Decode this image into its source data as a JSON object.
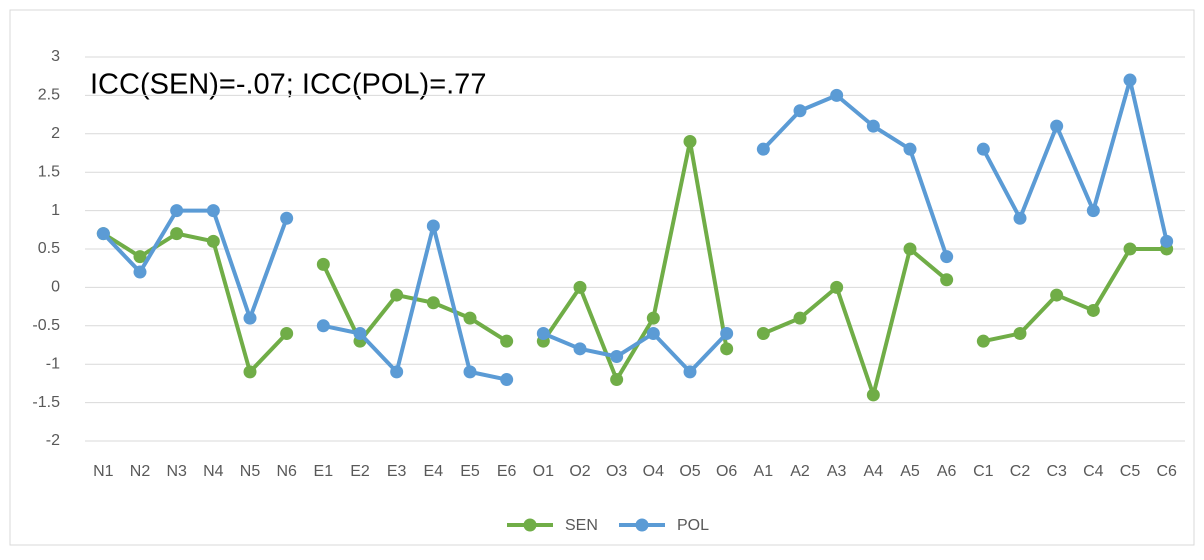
{
  "chart_data": {
    "type": "line",
    "annotation": "ICC(SEN)=-.07; ICC(POL)=.77",
    "categories": [
      "N1",
      "N2",
      "N3",
      "N4",
      "N5",
      "N6",
      "E1",
      "E2",
      "E3",
      "E4",
      "E5",
      "E6",
      "O1",
      "O2",
      "O3",
      "O4",
      "O5",
      "O6",
      "A1",
      "A2",
      "A3",
      "A4",
      "A5",
      "A6",
      "C1",
      "C2",
      "C3",
      "C4",
      "C5",
      "C6"
    ],
    "series": [
      {
        "name": "SEN",
        "color": "#70ad47",
        "values": [
          0.7,
          0.4,
          0.7,
          0.6,
          -1.1,
          -0.6,
          0.3,
          -0.7,
          -0.1,
          -0.2,
          -0.4,
          -0.7,
          -0.7,
          0,
          -1.2,
          -0.4,
          1.9,
          -0.8,
          -0.6,
          -0.4,
          0,
          -1.4,
          0.5,
          0.1,
          -0.7,
          -0.6,
          -0.1,
          -0.3,
          0.5,
          0.5
        ]
      },
      {
        "name": "POL",
        "color": "#5b9bd5",
        "values": [
          0.7,
          0.2,
          1,
          1,
          -0.4,
          0.9,
          -0.5,
          -0.6,
          -1.1,
          0.8,
          -1.1,
          -1.2,
          -0.6,
          -0.8,
          -0.9,
          -0.6,
          -1.1,
          -0.6,
          1.8,
          2.3,
          2.5,
          2.1,
          1.8,
          0.4,
          1.8,
          0.9,
          2.1,
          1,
          2.7,
          0.6
        ]
      }
    ],
    "ylim": [
      -2,
      3
    ],
    "yticks": [
      -2,
      -1.5,
      -1,
      -0.5,
      0,
      0.5,
      1,
      1.5,
      2,
      2.5,
      3
    ],
    "grid": true,
    "legend": "bottom"
  }
}
